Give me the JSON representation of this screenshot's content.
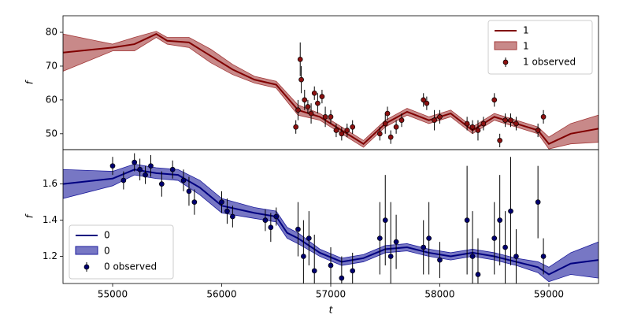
{
  "chart_data": [
    {
      "type": "line",
      "ylabel": "f",
      "xlim": [
        54545,
        59455
      ],
      "ylim": [
        45.3,
        84.9
      ],
      "yticks": [
        50,
        60,
        70,
        80
      ],
      "legend": "upper right",
      "x": [
        54545,
        55000,
        55200,
        55400,
        55500,
        55700,
        55900,
        56100,
        56300,
        56500,
        56700,
        56900,
        57100,
        57300,
        57500,
        57700,
        57900,
        58100,
        58300,
        58500,
        58700,
        58900,
        59000,
        59200,
        59455
      ],
      "series": [
        {
          "name": "1",
          "color": "#800000",
          "values": [
            74,
            75.5,
            76.5,
            79.5,
            77.5,
            77,
            73,
            69,
            66,
            64.5,
            57,
            55,
            51,
            47,
            53,
            56.5,
            54,
            56,
            51,
            55,
            53,
            51,
            47,
            50,
            51.5
          ]
        }
      ],
      "band": {
        "name": "1",
        "color": "#a33a3a",
        "upper": [
          79.5,
          76.5,
          78.5,
          80.3,
          78.5,
          78.5,
          75,
          70.5,
          67,
          65.5,
          58.5,
          56,
          52,
          48,
          54,
          57.5,
          55,
          57,
          52,
          56,
          54,
          52,
          49,
          53,
          55.5
        ],
        "lower": [
          68.5,
          74.5,
          74.5,
          78.5,
          76.5,
          75.5,
          71,
          67.5,
          65,
          63.5,
          55.5,
          54,
          50,
          46,
          52,
          55.5,
          53,
          55,
          50,
          54,
          52,
          50,
          45.5,
          47,
          47.5
        ]
      },
      "observed": {
        "name": "1 observed",
        "color": "#8b1010",
        "x": [
          56680,
          56700,
          56720,
          56730,
          56760,
          56790,
          56820,
          56850,
          56880,
          56920,
          56950,
          57000,
          57050,
          57100,
          57150,
          57200,
          57450,
          57500,
          57520,
          57550,
          57600,
          57650,
          57850,
          57880,
          57950,
          58000,
          58250,
          58300,
          58350,
          58400,
          58500,
          58550,
          58600,
          58650,
          58700,
          58900,
          58950
        ],
        "values": [
          52,
          57,
          72,
          66,
          60,
          58,
          56,
          62,
          59,
          61,
          55,
          55,
          51,
          50,
          51,
          52,
          50,
          53,
          56,
          49,
          52,
          54,
          60,
          59,
          54,
          55,
          53,
          52,
          51,
          53,
          60,
          48,
          54,
          54,
          53,
          51,
          55
        ],
        "errors": [
          2,
          3,
          5,
          4,
          3,
          2,
          3,
          2,
          3,
          2,
          3,
          2,
          2,
          2,
          2,
          2,
          2,
          3,
          2,
          2,
          2,
          2,
          2,
          2,
          3,
          2,
          2,
          2,
          3,
          2,
          2,
          2,
          2,
          2,
          2,
          2,
          2
        ]
      }
    },
    {
      "type": "line",
      "ylabel": "f",
      "xlabel": "t",
      "xlim": [
        54545,
        59455
      ],
      "ylim": [
        1.05,
        1.79
      ],
      "yticks": [
        1.2,
        1.4,
        1.6
      ],
      "xticks": [
        55000,
        56000,
        57000,
        58000,
        59000
      ],
      "legend": "lower left",
      "x": [
        54545,
        55000,
        55200,
        55400,
        55600,
        55800,
        56000,
        56300,
        56500,
        56600,
        56700,
        56900,
        57100,
        57300,
        57500,
        57700,
        57900,
        58100,
        58300,
        58500,
        58700,
        58900,
        59000,
        59200,
        59455
      ],
      "series": [
        {
          "name": "0",
          "color": "#000080",
          "values": [
            1.6,
            1.63,
            1.68,
            1.66,
            1.65,
            1.58,
            1.48,
            1.44,
            1.42,
            1.33,
            1.3,
            1.22,
            1.17,
            1.19,
            1.24,
            1.25,
            1.22,
            1.2,
            1.22,
            1.2,
            1.17,
            1.14,
            1.1,
            1.16,
            1.18
          ]
        }
      ],
      "band": {
        "name": "0",
        "color": "#1c1c9c",
        "upper": [
          1.68,
          1.67,
          1.71,
          1.69,
          1.68,
          1.62,
          1.52,
          1.47,
          1.45,
          1.36,
          1.33,
          1.24,
          1.19,
          1.21,
          1.26,
          1.27,
          1.24,
          1.22,
          1.24,
          1.22,
          1.19,
          1.17,
          1.14,
          1.22,
          1.28
        ],
        "lower": [
          1.52,
          1.59,
          1.65,
          1.63,
          1.62,
          1.54,
          1.44,
          1.41,
          1.39,
          1.3,
          1.27,
          1.2,
          1.15,
          1.17,
          1.22,
          1.23,
          1.2,
          1.18,
          1.2,
          1.18,
          1.15,
          1.11,
          1.06,
          1.1,
          1.08
        ]
      },
      "observed": {
        "name": "0 observed",
        "color": "#000070",
        "x": [
          55000,
          55100,
          55200,
          55250,
          55300,
          55350,
          55450,
          55550,
          55650,
          55700,
          55750,
          56000,
          56050,
          56100,
          56400,
          56450,
          56500,
          56700,
          56750,
          56800,
          56850,
          57000,
          57100,
          57200,
          57450,
          57500,
          57550,
          57600,
          57850,
          57900,
          58000,
          58250,
          58300,
          58350,
          58500,
          58550,
          58600,
          58650,
          58700,
          58900,
          58950
        ],
        "values": [
          1.7,
          1.62,
          1.72,
          1.68,
          1.65,
          1.7,
          1.6,
          1.68,
          1.62,
          1.56,
          1.5,
          1.5,
          1.45,
          1.42,
          1.4,
          1.36,
          1.42,
          1.35,
          1.2,
          1.3,
          1.12,
          1.15,
          1.08,
          1.12,
          1.3,
          1.4,
          1.2,
          1.28,
          1.25,
          1.3,
          1.18,
          1.4,
          1.2,
          1.1,
          1.3,
          1.4,
          1.25,
          1.45,
          1.2,
          1.5,
          1.2
        ],
        "errors": [
          0.05,
          0.05,
          0.05,
          0.06,
          0.05,
          0.06,
          0.07,
          0.05,
          0.06,
          0.08,
          0.07,
          0.06,
          0.07,
          0.06,
          0.06,
          0.08,
          0.05,
          0.15,
          0.2,
          0.15,
          0.2,
          0.1,
          0.12,
          0.1,
          0.2,
          0.25,
          0.3,
          0.15,
          0.15,
          0.2,
          0.1,
          0.3,
          0.25,
          0.2,
          0.2,
          0.25,
          0.2,
          0.3,
          0.15,
          0.2,
          0.1
        ]
      }
    }
  ]
}
